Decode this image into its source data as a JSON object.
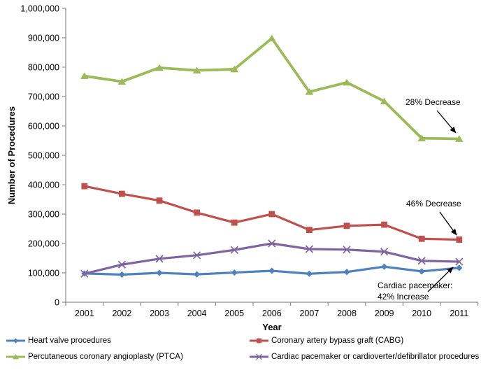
{
  "chart_data": {
    "type": "line",
    "title": "",
    "xlabel": "Year",
    "ylabel": "Number of Procedures",
    "x_categories": [
      "2001",
      "2002",
      "2003",
      "2004",
      "2005",
      "2006",
      "2007",
      "2008",
      "2009",
      "2010",
      "2011"
    ],
    "ylim": [
      0,
      1000000
    ],
    "y_ticks": [
      0,
      100000,
      200000,
      300000,
      400000,
      500000,
      600000,
      700000,
      800000,
      900000,
      1000000
    ],
    "y_tick_labels": [
      "0",
      "100,000",
      "200,000",
      "300,000",
      "400,000",
      "500,000",
      "600,000",
      "700,000",
      "800,000",
      "900,000",
      "1,000,000"
    ],
    "grid": false,
    "legend_position": "bottom-two-columns",
    "series": [
      {
        "name": "Heart valve procedures",
        "color": "#4F81BD",
        "marker": "diamond",
        "values": [
          98000,
          94000,
          100000,
          95000,
          101000,
          107000,
          97000,
          103000,
          121000,
          105000,
          117000
        ]
      },
      {
        "name": "Coronary artery bypass graft (CABG)",
        "color": "#C0504D",
        "marker": "square",
        "values": [
          395000,
          369000,
          346000,
          305000,
          271000,
          300000,
          246000,
          260000,
          264000,
          216000,
          213000
        ]
      },
      {
        "name": "Percutaneous coronary angioplasty (PTCA)",
        "color": "#9BBB59",
        "marker": "triangle",
        "values": [
          770000,
          751000,
          798000,
          789000,
          793000,
          898000,
          716000,
          748000,
          684000,
          558000,
          556000
        ]
      },
      {
        "name": "Cardiac pacemaker or cardioverter/defibrillator procedures",
        "color": "#8064A2",
        "marker": "x",
        "values": [
          97000,
          128000,
          148000,
          160000,
          178000,
          200000,
          181000,
          179000,
          172000,
          141000,
          138000
        ]
      }
    ],
    "annotations": [
      {
        "text": "28% Decrease",
        "target_series": "Percutaneous coronary angioplasty (PTCA)",
        "target_year": "2011"
      },
      {
        "text": "46% Decrease",
        "target_series": "Coronary artery bypass graft (CABG)",
        "target_year": "2011"
      },
      {
        "text": "Cardiac pacemaker:\n42% Increase",
        "target_series": "Cardiac pacemaker or cardioverter/defibrillator procedures",
        "target_year": "2011"
      }
    ]
  }
}
